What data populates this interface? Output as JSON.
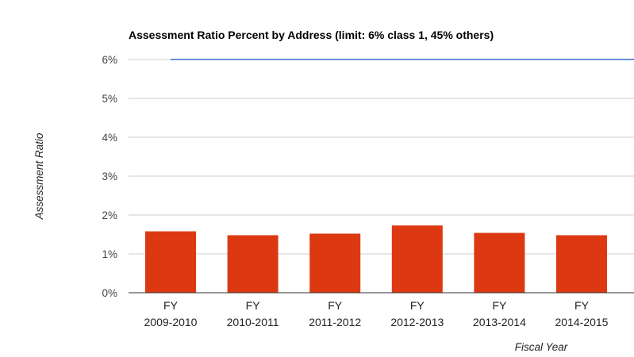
{
  "chart_data": {
    "type": "bar",
    "title": "Assessment Ratio Percent by Address (limit: 6% class 1, 45% others)",
    "xlabel": "Fiscal Year",
    "ylabel": "Assessment Ratio",
    "categories": [
      [
        "FY",
        "2009-2010"
      ],
      [
        "FY",
        "2010-2011"
      ],
      [
        "FY",
        "2011-2012"
      ],
      [
        "FY",
        "2012-2013"
      ],
      [
        "FY",
        "2013-2014"
      ],
      [
        "FY",
        "2014-2015"
      ]
    ],
    "series": [
      {
        "values": [
          1.58,
          1.48,
          1.52,
          1.73,
          1.54,
          1.48
        ]
      }
    ],
    "limit_line": {
      "value": 6
    },
    "ylim": [
      0,
      6
    ],
    "yticks": [
      0,
      1,
      2,
      3,
      4,
      5,
      6
    ],
    "ytick_labels": [
      "0%",
      "1%",
      "2%",
      "3%",
      "4%",
      "5%",
      "6%"
    ],
    "grid": true,
    "legend": "none",
    "colors": {
      "bar": "#dc3912",
      "limit_line": "#3366cc",
      "grid": "#cccccc",
      "baseline": "#333333"
    }
  }
}
